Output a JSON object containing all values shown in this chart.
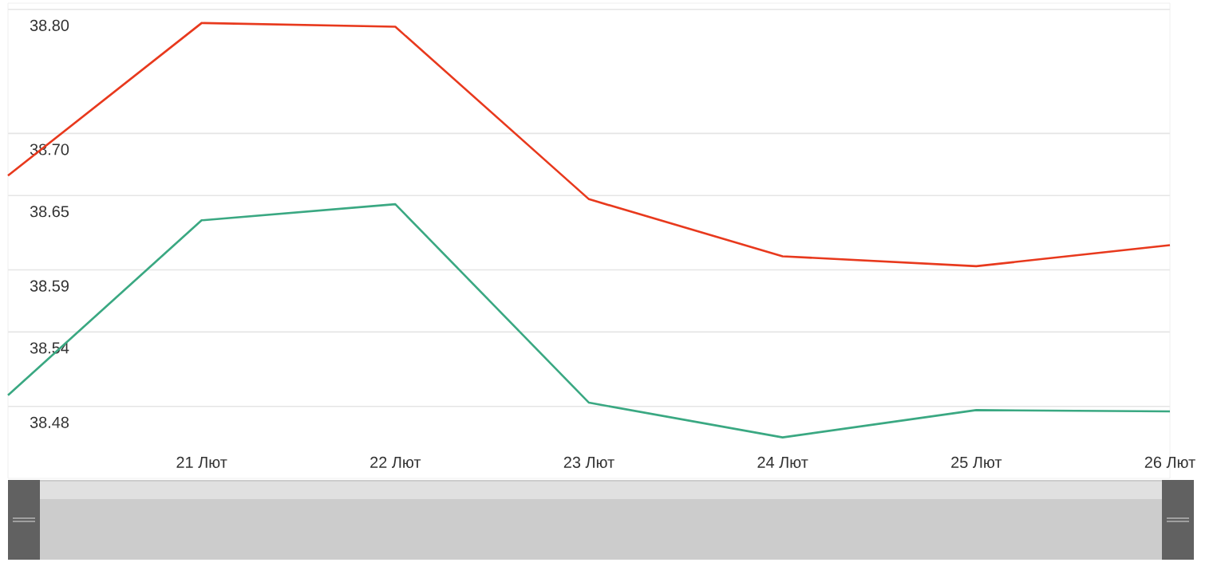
{
  "chart_data": {
    "type": "line",
    "categories": [
      null,
      "21 Лют",
      "22 Лют",
      "23 Лют",
      "24 Лют",
      "25 Лют",
      "26 Лют"
    ],
    "series": [
      {
        "color": "#e8391d",
        "values": [
          38.666,
          38.789,
          38.786,
          38.647,
          38.601,
          38.593,
          38.61
        ]
      },
      {
        "color": "#3aa882",
        "values": [
          38.489,
          38.63,
          38.643,
          38.483,
          38.455,
          38.477,
          38.476
        ]
      }
    ],
    "ylim": [
      38.422,
      38.805
    ],
    "yticks": [
      38.48,
      38.54,
      38.59,
      38.65,
      {
        "value": 38.7,
        "label": "38.70"
      },
      {
        "value": 38.8,
        "label": "38.80"
      }
    ],
    "grid": "y",
    "marker": "none",
    "line_style": "solid"
  }
}
